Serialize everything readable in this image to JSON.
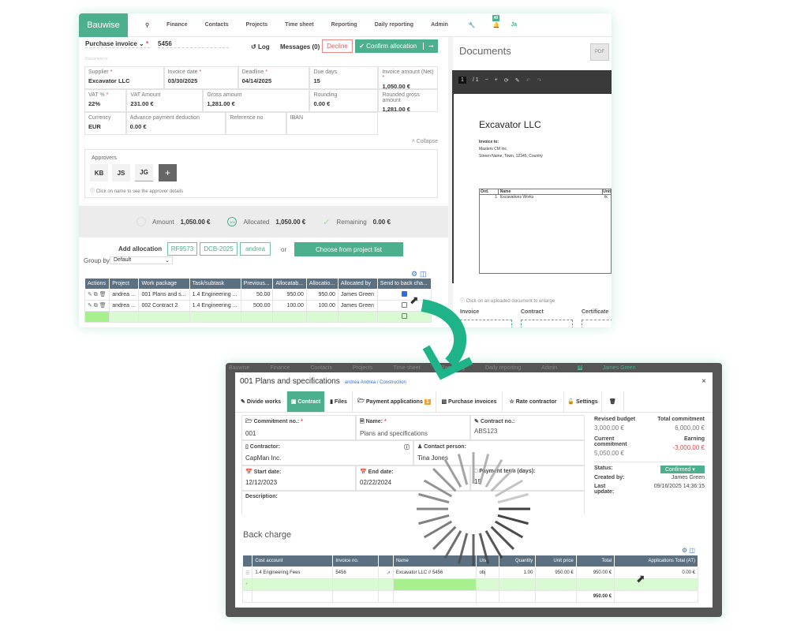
{
  "nav": {
    "brand": "Bauwise",
    "items": [
      "Finance",
      "Contacts",
      "Projects",
      "Time sheet",
      "Reporting",
      "Daily reporting",
      "Admin"
    ],
    "badge": "40",
    "user": "Ja"
  },
  "invoice": {
    "type": "Purchase invoice",
    "number": "5456",
    "doc_label": "Document nr:",
    "log": "Log",
    "messages": "Messages (0)",
    "decline": "Decline",
    "confirm": "Confirm allocation",
    "fields": [
      {
        "label": "Supplier",
        "value": "Excavator LLC"
      },
      {
        "label": "Invoice date",
        "value": "03/30/2025"
      },
      {
        "label": "Deadline",
        "value": "04/14/2025"
      },
      {
        "label": "Due days",
        "value": "15"
      },
      {
        "label": "Invoice amount (Net)",
        "value": "1,050.00 €"
      },
      {
        "label": "VAT %",
        "value": "22%"
      },
      {
        "label": "VAT Amount",
        "value": "231.00 €"
      },
      {
        "label": "Gross amount",
        "value": "1,281.00 €"
      },
      {
        "label": "Rounding",
        "value": "0.00 €"
      },
      {
        "label": "Rounded gross amount",
        "value": "1,281.00 €"
      },
      {
        "label": "Currency",
        "value": "EUR"
      },
      {
        "label": "Advance payment deduction",
        "value": "0.00 €"
      },
      {
        "label": "Reference no",
        "value": ""
      },
      {
        "label": "IBAN",
        "value": ""
      }
    ],
    "collapse": "Collapse",
    "approvers": {
      "title": "Approvers",
      "items": [
        "KB",
        "JS",
        "JG"
      ],
      "add": "+",
      "hint": "Click on name to see the approver details"
    },
    "summary": {
      "amount_label": "Amount",
      "amount": "1,050.00 €",
      "allocated_label": "Allocated",
      "allocated": "1,050.00 €",
      "allocated_pct": "100",
      "remaining_label": "Remaining",
      "remaining": "0.00 €"
    },
    "add_allocation": "Add allocation",
    "chips": [
      "RF9573",
      "DCB-2025",
      "andrea"
    ],
    "or": "or",
    "choose": "Choose from project list",
    "group_by": "Group by",
    "group_value": "Default",
    "table": {
      "headers": [
        "Actions",
        "Project",
        "Work package",
        "Task/subtask",
        "Previous...",
        "Allocatab...",
        "Allocatio...",
        "Allocated by",
        "Send to back cha..."
      ],
      "rows": [
        [
          "andrea ...",
          "001 Plans and s...",
          "1.4 Engineering ...",
          "50.00",
          "950.00",
          "950.00",
          "James Green",
          true
        ],
        [
          "andrea ...",
          "002 Contract 2",
          "1.4 Engineering ...",
          "500.00",
          "100.00",
          "100.00",
          "James Green",
          false
        ]
      ]
    }
  },
  "documents": {
    "title": "Documents",
    "pdf": "PDF",
    "page": "1",
    "pages": "/ 1",
    "pdf_title": "Excavator LLC",
    "invoice_to": "Invoice to:",
    "addr1": "Masters CM Inc.",
    "addr2": "Streen Name, Town, 12345, Country",
    "th": [
      "Ord.",
      "Name",
      "Unit"
    ],
    "row": [
      "1",
      "Excavations Works",
      "tk"
    ],
    "hint": "Click on an uploaded document to enlarge",
    "categories": [
      "Invoice",
      "Contract",
      "Certificate"
    ]
  },
  "modal": {
    "title": "001 Plans and specifications",
    "breadcrumb": "andrea Andrea / Construction",
    "tabs": [
      "Divide works",
      "Contract",
      "Files",
      "Payment applications",
      "Purchase invoices",
      "Rate contractor",
      "Settings"
    ],
    "pay_badge": "1",
    "commitment_label": "Commitment no.:",
    "commitment": "001",
    "name_label": "Name:",
    "name": "Plans and specifications",
    "contract_label": "Contract no.:",
    "contract": "ABS123",
    "contractor_label": "Contractor:",
    "contractor": "CapMan Inc.",
    "contact_label": "Contact person:",
    "contact": "Tina Jones",
    "start_label": "Start date:",
    "start": "12/12/2023",
    "end_label": "End date:",
    "end": "02/22/2024",
    "term_label": "Payment term (days):",
    "term": "15",
    "desc_label": "Description:",
    "revised_label": "Revised budget",
    "revised": "3,000.00 €",
    "total_label": "Total commitment",
    "total": "6,000.00 €",
    "current_label": "Current commitment",
    "current": "5,050.00 €",
    "earning_label": "Earning",
    "earning": "-3,000.00 €",
    "status_label": "Status:",
    "status": "Confirmed",
    "created_label": "Created by:",
    "created": "James Green",
    "updated_label": "Last update:",
    "updated": "09/16/2025 14:36:15",
    "back_charge": "Back charge",
    "bc_headers": [
      "Cost account",
      "Invoice no.",
      "",
      "Name",
      "Unit",
      "Quantity",
      "Unit price",
      "Total",
      "Applications Total (AT)"
    ],
    "bc_row": [
      "1.4 Engineering Fees",
      "5456",
      "",
      "Excavator LLC // 5456",
      "obj",
      "1.00",
      "950.00 €",
      "950.00 €",
      "0.00 €"
    ],
    "bc_total": "950.00 €"
  },
  "bg_nav": {
    "user": "James Green",
    "badge": "39"
  },
  "colors": {
    "accent": "#4caf8e",
    "header": "#5b7080",
    "negative": "#e44"
  }
}
